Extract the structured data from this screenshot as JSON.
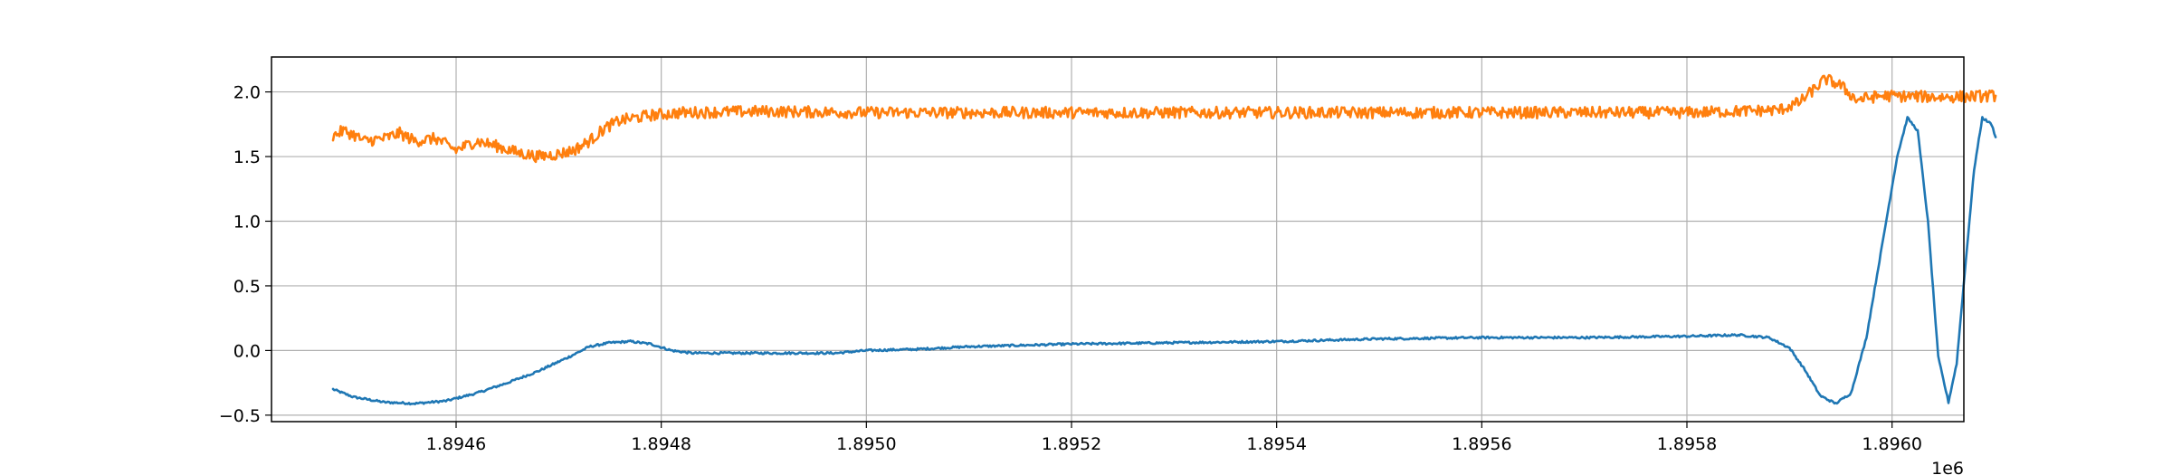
{
  "chart_data": {
    "type": "line",
    "title": "",
    "xlabel": "",
    "ylabel": "",
    "x_offset_label": "1e6",
    "xlim": [
      1894420,
      1896070
    ],
    "ylim": [
      -0.55,
      2.27
    ],
    "grid": true,
    "x_ticks": [
      {
        "value": 1894600,
        "label": "1.8946"
      },
      {
        "value": 1894800,
        "label": "1.8948"
      },
      {
        "value": 1895000,
        "label": "1.8950"
      },
      {
        "value": 1895200,
        "label": "1.8952"
      },
      {
        "value": 1895400,
        "label": "1.8954"
      },
      {
        "value": 1895600,
        "label": "1.8956"
      },
      {
        "value": 1895800,
        "label": "1.8958"
      },
      {
        "value": 1896000,
        "label": "1.8960"
      }
    ],
    "y_ticks": [
      {
        "value": -0.5,
        "label": "−0.5"
      },
      {
        "value": 0.0,
        "label": "0.0"
      },
      {
        "value": 0.5,
        "label": "0.5"
      },
      {
        "value": 1.0,
        "label": "1.0"
      },
      {
        "value": 1.5,
        "label": "1.5"
      },
      {
        "value": 2.0,
        "label": "2.0"
      }
    ],
    "series": [
      {
        "color": "#1f77b4",
        "noise": 0.008,
        "points": [
          [
            1894480,
            -0.3
          ],
          [
            1894500,
            -0.36
          ],
          [
            1894530,
            -0.4
          ],
          [
            1894560,
            -0.41
          ],
          [
            1894590,
            -0.39
          ],
          [
            1894620,
            -0.33
          ],
          [
            1894650,
            -0.25
          ],
          [
            1894680,
            -0.16
          ],
          [
            1894710,
            -0.05
          ],
          [
            1894730,
            0.03
          ],
          [
            1894750,
            0.06
          ],
          [
            1894770,
            0.07
          ],
          [
            1894790,
            0.05
          ],
          [
            1894810,
            0.0
          ],
          [
            1894830,
            -0.02
          ],
          [
            1894870,
            -0.02
          ],
          [
            1894920,
            -0.02
          ],
          [
            1894970,
            -0.02
          ],
          [
            1895000,
            0.0
          ],
          [
            1895050,
            0.01
          ],
          [
            1895100,
            0.03
          ],
          [
            1895200,
            0.05
          ],
          [
            1895300,
            0.06
          ],
          [
            1895400,
            0.07
          ],
          [
            1895500,
            0.09
          ],
          [
            1895600,
            0.1
          ],
          [
            1895700,
            0.1
          ],
          [
            1895800,
            0.11
          ],
          [
            1895850,
            0.12
          ],
          [
            1895880,
            0.1
          ],
          [
            1895900,
            0.02
          ],
          [
            1895915,
            -0.15
          ],
          [
            1895930,
            -0.35
          ],
          [
            1895945,
            -0.41
          ],
          [
            1895960,
            -0.33
          ],
          [
            1895975,
            0.1
          ],
          [
            1895990,
            0.8
          ],
          [
            1896005,
            1.5
          ],
          [
            1896015,
            1.8
          ],
          [
            1896025,
            1.7
          ],
          [
            1896035,
            1.0
          ],
          [
            1896045,
            -0.05
          ],
          [
            1896055,
            -0.4
          ],
          [
            1896063,
            -0.1
          ],
          [
            1896072,
            0.7
          ],
          [
            1896080,
            1.4
          ],
          [
            1896088,
            1.8
          ],
          [
            1896097,
            1.75
          ],
          [
            1896101,
            1.65
          ]
        ]
      },
      {
        "color": "#ff7f0e",
        "noise": 0.045,
        "points": [
          [
            1894480,
            1.66
          ],
          [
            1894490,
            1.7
          ],
          [
            1894500,
            1.67
          ],
          [
            1894510,
            1.62
          ],
          [
            1894530,
            1.64
          ],
          [
            1894545,
            1.68
          ],
          [
            1894560,
            1.62
          ],
          [
            1894580,
            1.64
          ],
          [
            1894600,
            1.55
          ],
          [
            1894620,
            1.62
          ],
          [
            1894640,
            1.58
          ],
          [
            1894660,
            1.53
          ],
          [
            1894680,
            1.5
          ],
          [
            1894700,
            1.52
          ],
          [
            1894715,
            1.55
          ],
          [
            1894730,
            1.62
          ],
          [
            1894745,
            1.72
          ],
          [
            1894760,
            1.78
          ],
          [
            1894790,
            1.82
          ],
          [
            1894820,
            1.84
          ],
          [
            1894900,
            1.85
          ],
          [
            1895000,
            1.84
          ],
          [
            1895200,
            1.84
          ],
          [
            1895400,
            1.84
          ],
          [
            1895600,
            1.84
          ],
          [
            1895800,
            1.84
          ],
          [
            1895890,
            1.86
          ],
          [
            1895910,
            1.92
          ],
          [
            1895935,
            2.1
          ],
          [
            1895950,
            2.05
          ],
          [
            1895965,
            1.94
          ],
          [
            1895990,
            1.97
          ],
          [
            1896050,
            1.96
          ],
          [
            1896101,
            1.97
          ]
        ]
      }
    ]
  }
}
